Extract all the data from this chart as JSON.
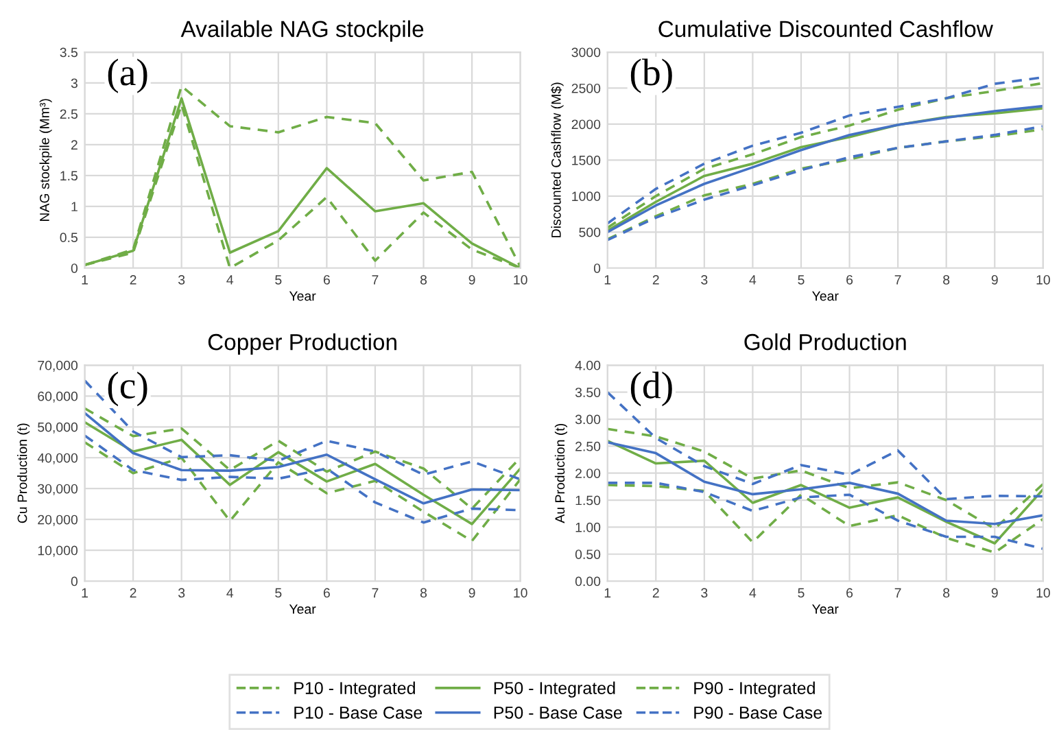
{
  "chart_data": [
    {
      "type": "line",
      "title": "Available NAG stockpile",
      "xlabel": "Year",
      "ylabel": "NAG stockpile (Mm³)",
      "annotations": [
        "(a)"
      ],
      "x": [
        1,
        2,
        3,
        4,
        5,
        6,
        7,
        8,
        9,
        10
      ],
      "xlim": [
        1,
        10
      ],
      "xticks": [
        1,
        2,
        3,
        4,
        5,
        6,
        7,
        8,
        9,
        10
      ],
      "ylim": [
        0,
        3.5
      ],
      "yticks": [
        0,
        0.5,
        1,
        1.5,
        2,
        2.5,
        3,
        3.5
      ],
      "grid": true,
      "legend": "bottom",
      "series": [
        {
          "name": "P10 - Integrated",
          "color": "#70ad47",
          "line_style": "dashed",
          "values": [
            0.05,
            0.25,
            2.65,
            0.0,
            0.45,
            1.15,
            0.12,
            0.9,
            0.3,
            0.0
          ]
        },
        {
          "name": "P50 - Integrated",
          "color": "#70ad47",
          "line_style": "solid",
          "values": [
            0.05,
            0.28,
            2.75,
            0.25,
            0.6,
            1.62,
            0.92,
            1.05,
            0.4,
            0.0
          ]
        },
        {
          "name": "P90 - Integrated",
          "color": "#70ad47",
          "line_style": "dashed",
          "values": [
            0.05,
            0.3,
            2.95,
            2.3,
            2.2,
            2.45,
            2.35,
            1.42,
            1.56,
            0.02
          ]
        }
      ]
    },
    {
      "type": "line",
      "title": "Cumulative Discounted Cashflow",
      "xlabel": "Year",
      "ylabel": "Discounted Cashflow (M$)",
      "annotations": [
        "(b)"
      ],
      "x": [
        1,
        2,
        3,
        4,
        5,
        6,
        7,
        8,
        9,
        10
      ],
      "xlim": [
        1,
        10
      ],
      "xticks": [
        1,
        2,
        3,
        4,
        5,
        6,
        7,
        8,
        9,
        10
      ],
      "ylim": [
        0,
        3000
      ],
      "yticks": [
        0,
        500,
        1000,
        1500,
        2000,
        2500,
        3000
      ],
      "grid": true,
      "legend": "bottom",
      "series": [
        {
          "name": "P10 - Integrated",
          "color": "#70ad47",
          "line_style": "dashed",
          "values": [
            400,
            720,
            1010,
            1170,
            1380,
            1510,
            1670,
            1760,
            1830,
            1930
          ]
        },
        {
          "name": "P50 - Integrated",
          "color": "#70ad47",
          "line_style": "solid",
          "values": [
            520,
            920,
            1280,
            1450,
            1680,
            1820,
            1990,
            2100,
            2150,
            2220
          ]
        },
        {
          "name": "P90 - Integrated",
          "color": "#70ad47",
          "line_style": "dashed",
          "values": [
            560,
            1000,
            1380,
            1580,
            1820,
            1980,
            2200,
            2360,
            2460,
            2570
          ]
        },
        {
          "name": "P10 - Base Case",
          "color": "#4472c4",
          "line_style": "dashed",
          "values": [
            390,
            700,
            950,
            1150,
            1360,
            1540,
            1670,
            1760,
            1850,
            1970
          ]
        },
        {
          "name": "P50 - Base Case",
          "color": "#4472c4",
          "line_style": "solid",
          "values": [
            500,
            870,
            1170,
            1400,
            1640,
            1850,
            1990,
            2090,
            2180,
            2250
          ]
        },
        {
          "name": "P90 - Base Case",
          "color": "#4472c4",
          "line_style": "dashed",
          "values": [
            620,
            1100,
            1450,
            1700,
            1880,
            2120,
            2240,
            2360,
            2560,
            2650
          ]
        }
      ]
    },
    {
      "type": "line",
      "title": "Copper Production",
      "xlabel": "Year",
      "ylabel": "Cu Production (t)",
      "annotations": [
        "(c)"
      ],
      "x": [
        1,
        2,
        3,
        4,
        5,
        6,
        7,
        8,
        9,
        10
      ],
      "xlim": [
        1,
        10
      ],
      "xticks": [
        1,
        2,
        3,
        4,
        5,
        6,
        7,
        8,
        9,
        10
      ],
      "ylim": [
        0,
        70000
      ],
      "yticks": [
        0,
        {
          "value": 10000,
          "label": "10,000"
        },
        {
          "value": 20000,
          "label": "20,000"
        },
        {
          "value": 30000,
          "label": "30,000"
        },
        {
          "value": 40000,
          "label": "40,000"
        },
        {
          "value": 50000,
          "label": "50,000"
        },
        {
          "value": 60000,
          "label": "60,000"
        },
        {
          "value": 70000,
          "label": "70,000"
        }
      ],
      "grid": true,
      "legend": "bottom",
      "series": [
        {
          "name": "P10 - Integrated",
          "color": "#70ad47",
          "line_style": "dashed",
          "values": [
            45000,
            35000,
            40000,
            19500,
            38500,
            28500,
            32500,
            22500,
            13000,
            33000
          ]
        },
        {
          "name": "P50 - Integrated",
          "color": "#70ad47",
          "line_style": "solid",
          "values": [
            51500,
            42000,
            45800,
            31200,
            41800,
            32300,
            38000,
            28000,
            18500,
            36500
          ]
        },
        {
          "name": "P90 - Integrated",
          "color": "#70ad47",
          "line_style": "dashed",
          "values": [
            56000,
            47000,
            49500,
            36000,
            45500,
            35500,
            42000,
            36500,
            23500,
            40000
          ]
        },
        {
          "name": "P10 - Base Case",
          "color": "#4472c4",
          "line_style": "dashed",
          "values": [
            47200,
            36000,
            32800,
            33800,
            33200,
            36500,
            25500,
            19000,
            23500,
            23000
          ]
        },
        {
          "name": "P50 - Base Case",
          "color": "#4472c4",
          "line_style": "solid",
          "values": [
            54500,
            41500,
            36000,
            35800,
            37000,
            41000,
            33000,
            25200,
            29700,
            29500
          ]
        },
        {
          "name": "P90 - Base Case",
          "color": "#4472c4",
          "line_style": "dashed",
          "values": [
            65000,
            48500,
            40200,
            40800,
            39000,
            45500,
            42000,
            34500,
            38800,
            33000
          ]
        }
      ]
    },
    {
      "type": "line",
      "title": "Gold Production",
      "xlabel": "Year",
      "ylabel": "Au Production (t)",
      "annotations": [
        "(d)"
      ],
      "x": [
        1,
        2,
        3,
        4,
        5,
        6,
        7,
        8,
        9,
        10
      ],
      "xlim": [
        1,
        10
      ],
      "xticks": [
        1,
        2,
        3,
        4,
        5,
        6,
        7,
        8,
        9,
        10
      ],
      "ylim": [
        0,
        4
      ],
      "yticks": [
        {
          "value": 0,
          "label": "0.00"
        },
        {
          "value": 0.5,
          "label": "0.50"
        },
        {
          "value": 1,
          "label": "1.00"
        },
        {
          "value": 1.5,
          "label": "1.50"
        },
        {
          "value": 2,
          "label": "2.00"
        },
        {
          "value": 2.5,
          "label": "2.50"
        },
        {
          "value": 3,
          "label": "3.00"
        },
        {
          "value": 3.5,
          "label": "3.50"
        },
        {
          "value": 4,
          "label": "4.00"
        }
      ],
      "grid": true,
      "legend": "bottom",
      "series": [
        {
          "name": "P10 - Integrated",
          "color": "#70ad47",
          "line_style": "dashed",
          "values": [
            1.78,
            1.76,
            1.67,
            0.72,
            1.6,
            1.02,
            1.22,
            0.8,
            0.53,
            1.15
          ]
        },
        {
          "name": "P50 - Integrated",
          "color": "#70ad47",
          "line_style": "solid",
          "values": [
            2.6,
            2.18,
            2.23,
            1.45,
            1.78,
            1.36,
            1.55,
            1.1,
            0.7,
            1.7
          ]
        },
        {
          "name": "P90 - Integrated",
          "color": "#70ad47",
          "line_style": "dashed",
          "values": [
            2.82,
            2.68,
            2.4,
            1.9,
            2.05,
            1.72,
            1.83,
            1.5,
            0.97,
            1.8
          ]
        },
        {
          "name": "P10 - Base Case",
          "color": "#4472c4",
          "line_style": "dashed",
          "values": [
            1.82,
            1.82,
            1.65,
            1.3,
            1.55,
            1.6,
            1.12,
            0.82,
            0.82,
            0.6
          ]
        },
        {
          "name": "P50 - Base Case",
          "color": "#4472c4",
          "line_style": "solid",
          "values": [
            2.57,
            2.37,
            1.84,
            1.61,
            1.7,
            1.82,
            1.62,
            1.12,
            1.06,
            1.22
          ]
        },
        {
          "name": "P90 - Base Case",
          "color": "#4472c4",
          "line_style": "dashed",
          "values": [
            3.5,
            2.65,
            2.13,
            1.8,
            2.15,
            1.97,
            2.42,
            1.52,
            1.58,
            1.57
          ]
        }
      ]
    }
  ]
}
